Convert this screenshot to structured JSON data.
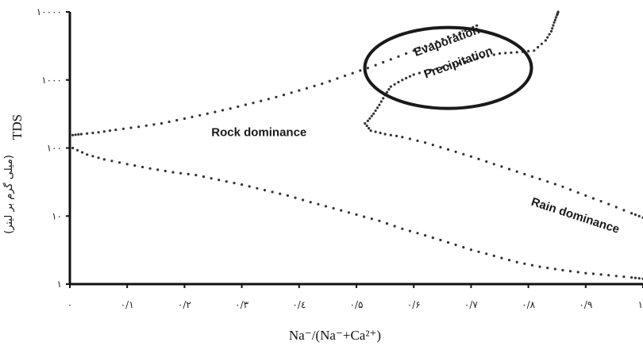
{
  "chart_data": {
    "type": "scatter",
    "title": "",
    "xlabel": "Na⁻/(Na⁻+Ca²⁺)",
    "ylabel": "TDS",
    "ylabel_secondary": "(میلی گرم بر لیتر)",
    "xlim": [
      0,
      1
    ],
    "ylim": [
      1,
      10000
    ],
    "y_scale": "log",
    "grid": false,
    "x_ticks": [
      0,
      0.1,
      0.2,
      0.3,
      0.4,
      0.5,
      0.6,
      0.7,
      0.8,
      0.9,
      1.0
    ],
    "x_tick_labels": [
      "۰",
      "۰/۱",
      "۰/۲",
      "۰/۳",
      "۰/٤",
      "۰/۵",
      "۰/۶",
      "۰/۷",
      "۰/۸",
      "۰/۹",
      "۱"
    ],
    "y_ticks": [
      1,
      10,
      100,
      1000,
      10000
    ],
    "y_tick_labels": [
      "۱",
      "۱۰",
      "۱۰۰",
      "۱۰۰۰",
      "۱۰۰۰۰"
    ],
    "annotations": [
      {
        "text": "Rock dominance",
        "x": 0.33,
        "y": 150,
        "angle": 0
      },
      {
        "text": "Rain dominance",
        "x": 0.88,
        "y": 9,
        "angle": 18
      },
      {
        "text": "Evaporation",
        "x": 0.66,
        "y": 3300,
        "angle": -20
      },
      {
        "text": "Precipitation",
        "x": 0.68,
        "y": 1600,
        "angle": -20
      }
    ],
    "highlight_ellipse": {
      "cx": 0.66,
      "cy": 1500
    },
    "series": [
      {
        "values": [
          [
            0.005,
            155
          ],
          [
            0.02,
            160
          ],
          [
            0.05,
            170
          ],
          [
            0.08,
            185
          ],
          [
            0.12,
            205
          ],
          [
            0.16,
            230
          ],
          [
            0.2,
            270
          ],
          [
            0.24,
            320
          ],
          [
            0.28,
            380
          ],
          [
            0.32,
            460
          ],
          [
            0.36,
            560
          ],
          [
            0.4,
            700
          ],
          [
            0.44,
            880
          ],
          [
            0.48,
            1150
          ],
          [
            0.52,
            1500
          ],
          [
            0.56,
            2000
          ],
          [
            0.6,
            2700
          ],
          [
            0.63,
            3400
          ],
          [
            0.66,
            4300
          ],
          [
            0.69,
            5300
          ],
          [
            0.71,
            6300
          ]
        ]
      },
      {
        "values": [
          [
            0.005,
            100
          ],
          [
            0.03,
            80
          ],
          [
            0.06,
            68
          ],
          [
            0.1,
            58
          ],
          [
            0.14,
            50
          ],
          [
            0.18,
            44
          ],
          [
            0.22,
            40
          ],
          [
            0.26,
            34
          ],
          [
            0.3,
            29
          ],
          [
            0.34,
            24
          ],
          [
            0.38,
            20
          ],
          [
            0.42,
            16
          ],
          [
            0.46,
            13
          ],
          [
            0.5,
            10.5
          ],
          [
            0.54,
            8.5
          ],
          [
            0.58,
            6.5
          ],
          [
            0.62,
            5.2
          ],
          [
            0.66,
            4.1
          ],
          [
            0.7,
            3.2
          ],
          [
            0.74,
            2.6
          ],
          [
            0.78,
            2.1
          ],
          [
            0.82,
            1.8
          ],
          [
            0.86,
            1.6
          ],
          [
            0.9,
            1.45
          ],
          [
            0.94,
            1.35
          ],
          [
            0.98,
            1.25
          ],
          [
            1.0,
            1.2
          ]
        ]
      },
      {
        "values": [
          [
            0.52,
            250
          ],
          [
            0.53,
            320
          ],
          [
            0.54,
            430
          ],
          [
            0.55,
            600
          ],
          [
            0.56,
            800
          ],
          [
            0.58,
            1000
          ],
          [
            0.6,
            1200
          ],
          [
            0.63,
            1400
          ],
          [
            0.66,
            1600
          ],
          [
            0.69,
            1850
          ],
          [
            0.72,
            2150
          ],
          [
            0.75,
            2450
          ],
          [
            0.78,
            2550
          ],
          [
            0.81,
            2700
          ],
          [
            0.83,
            3800
          ],
          [
            0.84,
            5200
          ],
          [
            0.845,
            7000
          ],
          [
            0.85,
            9000
          ],
          [
            0.852,
            10000
          ]
        ]
      },
      {
        "values": [
          [
            0.515,
            230
          ],
          [
            0.525,
            180
          ],
          [
            0.55,
            160
          ],
          [
            0.58,
            145
          ],
          [
            0.62,
            120
          ],
          [
            0.66,
            95
          ],
          [
            0.7,
            75
          ],
          [
            0.74,
            58
          ],
          [
            0.78,
            45
          ],
          [
            0.82,
            35
          ],
          [
            0.86,
            27
          ],
          [
            0.9,
            20
          ],
          [
            0.94,
            15
          ],
          [
            0.98,
            11
          ],
          [
            1.0,
            9.5
          ]
        ]
      }
    ]
  }
}
